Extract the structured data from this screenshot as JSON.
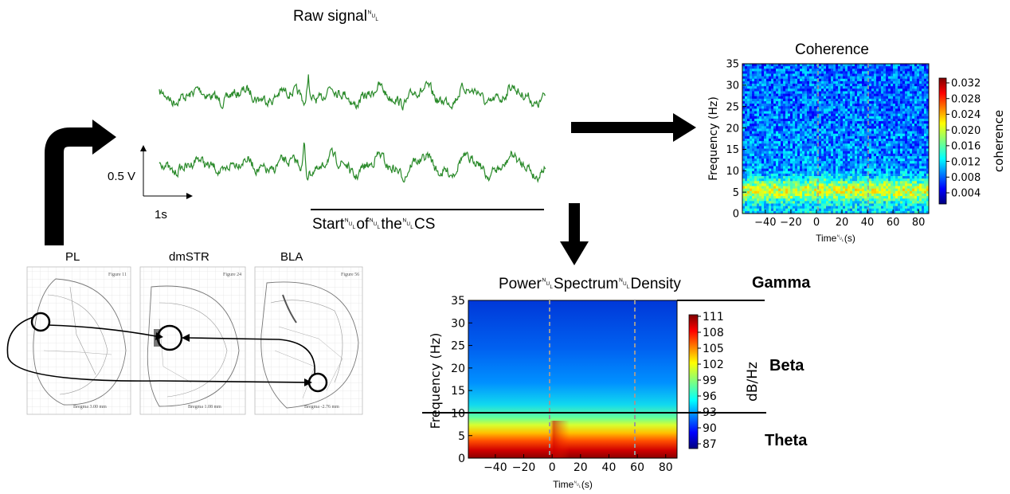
{
  "raw_signal": {
    "title": "Raw signal␀",
    "scale_y": "0.5 V",
    "scale_x": "1s",
    "cs_label": "Start␀of␀the␀CS",
    "trace_color": "#2a8a2a"
  },
  "atlas": {
    "panels": [
      {
        "label": "PL",
        "figure": "Figure 11",
        "bregma": "Bregma 3.00 mm"
      },
      {
        "label": "dmSTR",
        "figure": "Figure 24",
        "bregma": "Bregma 1.08 mm"
      },
      {
        "label": "BLA",
        "figure": "Figure 56",
        "bregma": "Bregma -2.76 mm"
      }
    ]
  },
  "coherence": {
    "title": "Coherence",
    "ylabel": "Frequency (Hz)",
    "xlabel": "Time␀(s)",
    "colorbar_label": "coherence",
    "y_ticks": [
      "35",
      "30",
      "25",
      "20",
      "15",
      "10",
      "5",
      "0"
    ],
    "x_ticks": [
      "−40",
      "−20",
      "0",
      "20",
      "40",
      "60",
      "80"
    ],
    "cbar_ticks": [
      "0.032",
      "0.028",
      "0.024",
      "0.020",
      "0.016",
      "0.012",
      "0.008",
      "0.004"
    ]
  },
  "psd": {
    "title": "Power␀Spectrum␀Density",
    "ylabel": "Frequency (Hz)",
    "xlabel": "Time␀(s)",
    "colorbar_label": "dB/Hz",
    "y_ticks": [
      "35",
      "30",
      "25",
      "20",
      "15",
      "10",
      "5",
      "0"
    ],
    "x_ticks": [
      "−40",
      "−20",
      "0",
      "20",
      "40",
      "60",
      "80"
    ],
    "cbar_ticks": [
      "111",
      "108",
      "105",
      "102",
      "99",
      "96",
      "93",
      "90",
      "87"
    ]
  },
  "bands": {
    "gamma": "Gamma",
    "beta": "Beta",
    "theta": "Theta"
  },
  "colors": {
    "arrow": "#000000",
    "dashed_marker": "#999999"
  }
}
